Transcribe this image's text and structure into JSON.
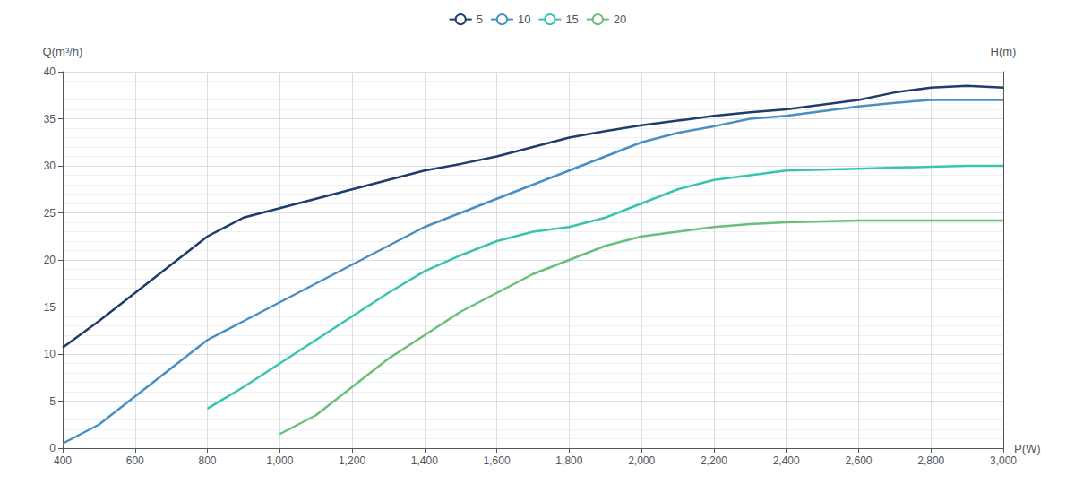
{
  "chart_data": {
    "type": "line",
    "xlabel": "P(W)",
    "ylabel": "Q(m³/h)",
    "y2label": "H(m)",
    "xlim": [
      400,
      3000
    ],
    "ylim": [
      0,
      40
    ],
    "xticks": [
      400,
      600,
      800,
      1000,
      1200,
      1400,
      1600,
      1800,
      2000,
      2200,
      2400,
      2600,
      2800,
      3000
    ],
    "yticks": [
      0,
      5,
      10,
      15,
      20,
      25,
      30,
      35,
      40
    ],
    "grid": true,
    "legend": "top",
    "series": [
      {
        "name": "5",
        "color": "#1e3d6b",
        "x": [
          400,
          500,
          600,
          700,
          800,
          900,
          1000,
          1100,
          1200,
          1300,
          1400,
          1500,
          1600,
          1700,
          1800,
          1900,
          2000,
          2100,
          2200,
          2300,
          2400,
          2500,
          2600,
          2700,
          2800,
          2900,
          3000
        ],
        "values": [
          10.7,
          13.5,
          16.5,
          19.5,
          22.5,
          24.5,
          25.5,
          26.5,
          27.5,
          28.5,
          29.5,
          30.2,
          31.0,
          32.0,
          33.0,
          33.7,
          34.3,
          34.8,
          35.3,
          35.7,
          36.0,
          36.5,
          37.0,
          37.8,
          38.3,
          38.5,
          38.3
        ]
      },
      {
        "name": "10",
        "color": "#4a8fc4",
        "x": [
          400,
          500,
          600,
          700,
          800,
          900,
          1000,
          1100,
          1200,
          1300,
          1400,
          1500,
          1600,
          1700,
          1800,
          1900,
          2000,
          2100,
          2200,
          2300,
          2400,
          2500,
          2600,
          2700,
          2800,
          2900,
          3000
        ],
        "values": [
          0.5,
          2.5,
          5.5,
          8.5,
          11.5,
          13.5,
          15.5,
          17.5,
          19.5,
          21.5,
          23.5,
          25.0,
          26.5,
          28.0,
          29.5,
          31.0,
          32.5,
          33.5,
          34.2,
          35.0,
          35.3,
          35.8,
          36.3,
          36.7,
          37.0,
          37.0,
          37.0
        ]
      },
      {
        "name": "15",
        "color": "#3ac4b0",
        "x": [
          800,
          900,
          1000,
          1100,
          1200,
          1300,
          1400,
          1500,
          1600,
          1700,
          1800,
          1900,
          2000,
          2100,
          2200,
          2300,
          2400,
          2500,
          2600,
          2700,
          2800,
          2900,
          3000
        ],
        "values": [
          4.2,
          6.5,
          9.0,
          11.5,
          14.0,
          16.5,
          18.8,
          20.5,
          22.0,
          23.0,
          23.5,
          24.5,
          26.0,
          27.5,
          28.5,
          29.0,
          29.5,
          29.6,
          29.7,
          29.8,
          29.9,
          30.0,
          30.0
        ]
      },
      {
        "name": "20",
        "color": "#6abf7a",
        "x": [
          1000,
          1100,
          1200,
          1300,
          1400,
          1500,
          1600,
          1700,
          1800,
          1900,
          2000,
          2100,
          2200,
          2300,
          2400,
          2500,
          2600,
          2700,
          2800,
          2900,
          3000
        ],
        "values": [
          1.5,
          3.5,
          6.5,
          9.5,
          12.0,
          14.5,
          16.5,
          18.5,
          20.0,
          21.5,
          22.5,
          23.0,
          23.5,
          23.8,
          24.0,
          24.1,
          24.2,
          24.2,
          24.2,
          24.2,
          24.2
        ]
      }
    ]
  }
}
